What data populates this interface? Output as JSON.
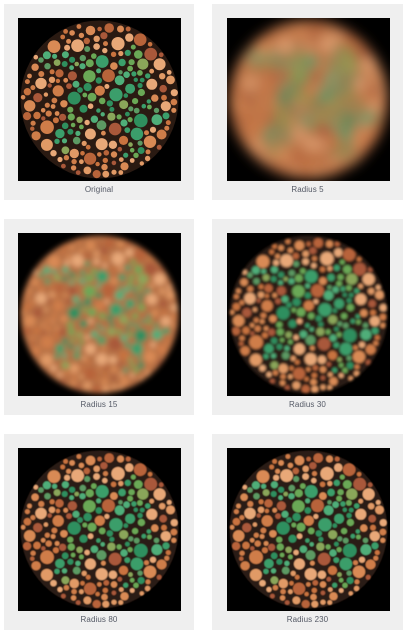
{
  "colors": {
    "card_background": "#efefef",
    "plate_background": "#000000",
    "dot_orange": "#d98a55",
    "dot_green": "#3b9e6b",
    "caption_text": "#555a66"
  },
  "panels": [
    {
      "caption": "Original",
      "blur_radius": 0
    },
    {
      "caption": "Radius 5",
      "blur_radius": 5
    },
    {
      "caption": "Radius 15",
      "blur_radius": 15
    },
    {
      "caption": "Radius 30",
      "blur_radius": 30
    },
    {
      "caption": "Radius 80",
      "blur_radius": 80
    },
    {
      "caption": "Radius 230",
      "blur_radius": 230
    }
  ]
}
